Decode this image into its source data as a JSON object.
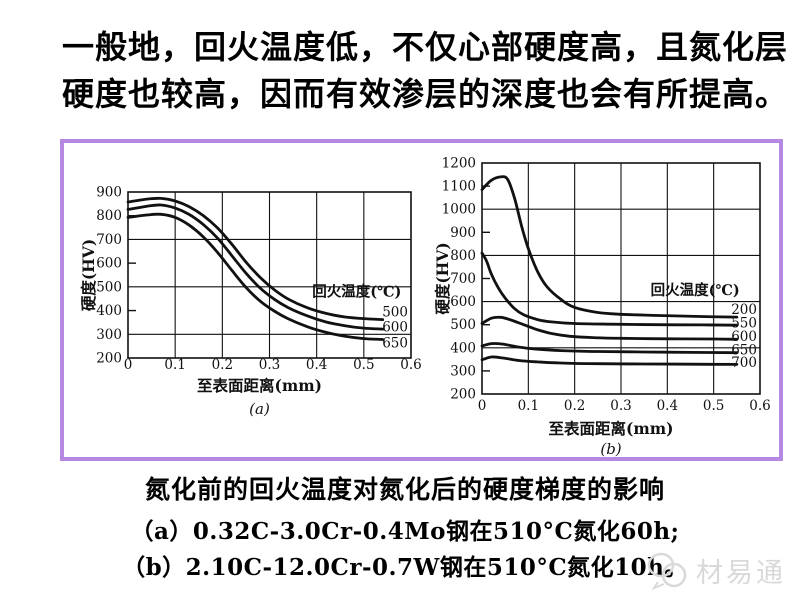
{
  "title": {
    "line1": "一般地，回火温度低，不仅心部硬度高，且氮化层",
    "line2": "硬度也较高，因而有效渗层的深度也会有所提高。"
  },
  "figure": {
    "border_color": "#b489e2",
    "ink_color": "#111111"
  },
  "caption": {
    "heading": "氮化前的回火温度对氮化后的硬度梯度的影响",
    "line_a": "（a）0.32C-3.0Cr-0.4Mo钢在510°C氮化60h;",
    "line_b": "（b）2.10C-12.0Cr-0.7W钢在510°C氮化10h。"
  },
  "watermark": {
    "text": "材易通",
    "icon": "speech-bubble-logo-icon",
    "color": "#d9d9d9"
  },
  "chart_data": [
    {
      "type": "line",
      "sublabel": "(a)",
      "xlabel": "至表面距离(mm)",
      "ylabel": "硬度(HV)",
      "legend_title": "回火温度(℃)",
      "legend_pos": [
        0.485,
        480
      ],
      "xlim": [
        0,
        0.6
      ],
      "ylim": [
        200,
        900
      ],
      "xtick_values": [
        0,
        0.1,
        0.2,
        0.3,
        0.4,
        0.5,
        0.6
      ],
      "xtick_labels": [
        "0",
        "0.1",
        "0.2",
        "0.3",
        "0.4",
        "0.5",
        "0.6"
      ],
      "ytick_values": [
        200,
        300,
        400,
        500,
        600,
        700,
        800,
        900
      ],
      "ytick_labels": [
        "200",
        "300",
        "400",
        "500",
        "600",
        "700",
        "800",
        "900"
      ],
      "x_gridlines": [
        0.1,
        0.2,
        0.3,
        0.4,
        0.5
      ],
      "y_gridlines": [
        300,
        500,
        700
      ],
      "grid": true,
      "series": [
        {
          "name": "500",
          "label_y": 394,
          "points": [
            [
              0,
              858
            ],
            [
              0.04,
              870
            ],
            [
              0.07,
              873
            ],
            [
              0.1,
              862
            ],
            [
              0.13,
              838
            ],
            [
              0.16,
              800
            ],
            [
              0.19,
              748
            ],
            [
              0.22,
              680
            ],
            [
              0.25,
              605
            ],
            [
              0.28,
              540
            ],
            [
              0.31,
              488
            ],
            [
              0.34,
              448
            ],
            [
              0.38,
              412
            ],
            [
              0.42,
              388
            ],
            [
              0.46,
              373
            ],
            [
              0.5,
              366
            ],
            [
              0.54,
              362
            ]
          ]
        },
        {
          "name": "600",
          "label_y": 331,
          "points": [
            [
              0,
              826
            ],
            [
              0.04,
              840
            ],
            [
              0.07,
              845
            ],
            [
              0.1,
              832
            ],
            [
              0.13,
              805
            ],
            [
              0.16,
              762
            ],
            [
              0.19,
              705
            ],
            [
              0.22,
              632
            ],
            [
              0.25,
              558
            ],
            [
              0.28,
              495
            ],
            [
              0.31,
              448
            ],
            [
              0.34,
              412
            ],
            [
              0.38,
              378
            ],
            [
              0.42,
              352
            ],
            [
              0.46,
              336
            ],
            [
              0.5,
              326
            ],
            [
              0.54,
              322
            ]
          ]
        },
        {
          "name": "650",
          "label_y": 263,
          "points": [
            [
              0,
              793
            ],
            [
              0.04,
              803
            ],
            [
              0.07,
              806
            ],
            [
              0.1,
              793
            ],
            [
              0.13,
              760
            ],
            [
              0.16,
              710
            ],
            [
              0.19,
              645
            ],
            [
              0.22,
              570
            ],
            [
              0.25,
              498
            ],
            [
              0.28,
              440
            ],
            [
              0.31,
              398
            ],
            [
              0.34,
              365
            ],
            [
              0.38,
              332
            ],
            [
              0.42,
              308
            ],
            [
              0.46,
              292
            ],
            [
              0.5,
              282
            ],
            [
              0.54,
              278
            ]
          ]
        }
      ]
    },
    {
      "type": "line",
      "sublabel": "(b)",
      "xlabel": "至表面距离(mm)",
      "ylabel": "硬度(HV)",
      "legend_title": "回火温度(℃)",
      "legend_pos": [
        0.46,
        650
      ],
      "xlim": [
        0,
        0.6
      ],
      "ylim": [
        200,
        1200
      ],
      "xtick_values": [
        0,
        0.1,
        0.2,
        0.3,
        0.4,
        0.5,
        0.6
      ],
      "xtick_labels": [
        "0",
        "0.1",
        "0.2",
        "0.3",
        "0.4",
        "0.5",
        "0.6"
      ],
      "ytick_values": [
        200,
        300,
        400,
        500,
        600,
        700,
        800,
        900,
        1000,
        1100,
        1200
      ],
      "ytick_labels": [
        "200",
        "300",
        "400",
        "500",
        "600",
        "700",
        "800",
        "900",
        "1000",
        "1100",
        "1200"
      ],
      "x_gridlines": [
        0.1,
        0.2,
        0.3,
        0.4,
        0.5
      ],
      "y_gridlines": [
        400,
        600,
        800,
        1000
      ],
      "grid": true,
      "series": [
        {
          "name": "200",
          "label_y": 565,
          "points": [
            [
              0,
              1085
            ],
            [
              0.02,
              1125
            ],
            [
              0.04,
              1140
            ],
            [
              0.055,
              1130
            ],
            [
              0.07,
              1050
            ],
            [
              0.085,
              930
            ],
            [
              0.1,
              830
            ],
            [
              0.12,
              730
            ],
            [
              0.14,
              665
            ],
            [
              0.17,
              610
            ],
            [
              0.2,
              575
            ],
            [
              0.25,
              553
            ],
            [
              0.3,
              545
            ],
            [
              0.38,
              540
            ],
            [
              0.46,
              536
            ],
            [
              0.55,
              533
            ]
          ]
        },
        {
          "name": "550",
          "label_y": 508,
          "points": [
            [
              0,
              810
            ],
            [
              0.01,
              775
            ],
            [
              0.02,
              720
            ],
            [
              0.035,
              660
            ],
            [
              0.05,
              615
            ],
            [
              0.07,
              570
            ],
            [
              0.09,
              543
            ],
            [
              0.12,
              522
            ],
            [
              0.15,
              512
            ],
            [
              0.2,
              505
            ],
            [
              0.28,
              502
            ],
            [
              0.38,
              500
            ],
            [
              0.48,
              499
            ],
            [
              0.55,
              498
            ]
          ]
        },
        {
          "name": "600",
          "label_y": 449,
          "points": [
            [
              0,
              505
            ],
            [
              0.02,
              528
            ],
            [
              0.04,
              532
            ],
            [
              0.06,
              522
            ],
            [
              0.09,
              500
            ],
            [
              0.12,
              478
            ],
            [
              0.15,
              462
            ],
            [
              0.19,
              450
            ],
            [
              0.24,
              444
            ],
            [
              0.3,
              441
            ],
            [
              0.4,
              439
            ],
            [
              0.5,
              438
            ],
            [
              0.55,
              437
            ]
          ]
        },
        {
          "name": "650",
          "label_y": 390,
          "points": [
            [
              0,
              408
            ],
            [
              0.02,
              418
            ],
            [
              0.045,
              416
            ],
            [
              0.08,
              403
            ],
            [
              0.12,
              394
            ],
            [
              0.17,
              388
            ],
            [
              0.25,
              384
            ],
            [
              0.35,
              382
            ],
            [
              0.45,
              380
            ],
            [
              0.55,
              379
            ]
          ]
        },
        {
          "name": "700",
          "label_y": 336,
          "points": [
            [
              0,
              348
            ],
            [
              0.02,
              360
            ],
            [
              0.045,
              356
            ],
            [
              0.08,
              345
            ],
            [
              0.12,
              339
            ],
            [
              0.17,
              334
            ],
            [
              0.25,
              331
            ],
            [
              0.35,
              330
            ],
            [
              0.45,
              329
            ],
            [
              0.55,
              328
            ]
          ]
        }
      ]
    }
  ]
}
